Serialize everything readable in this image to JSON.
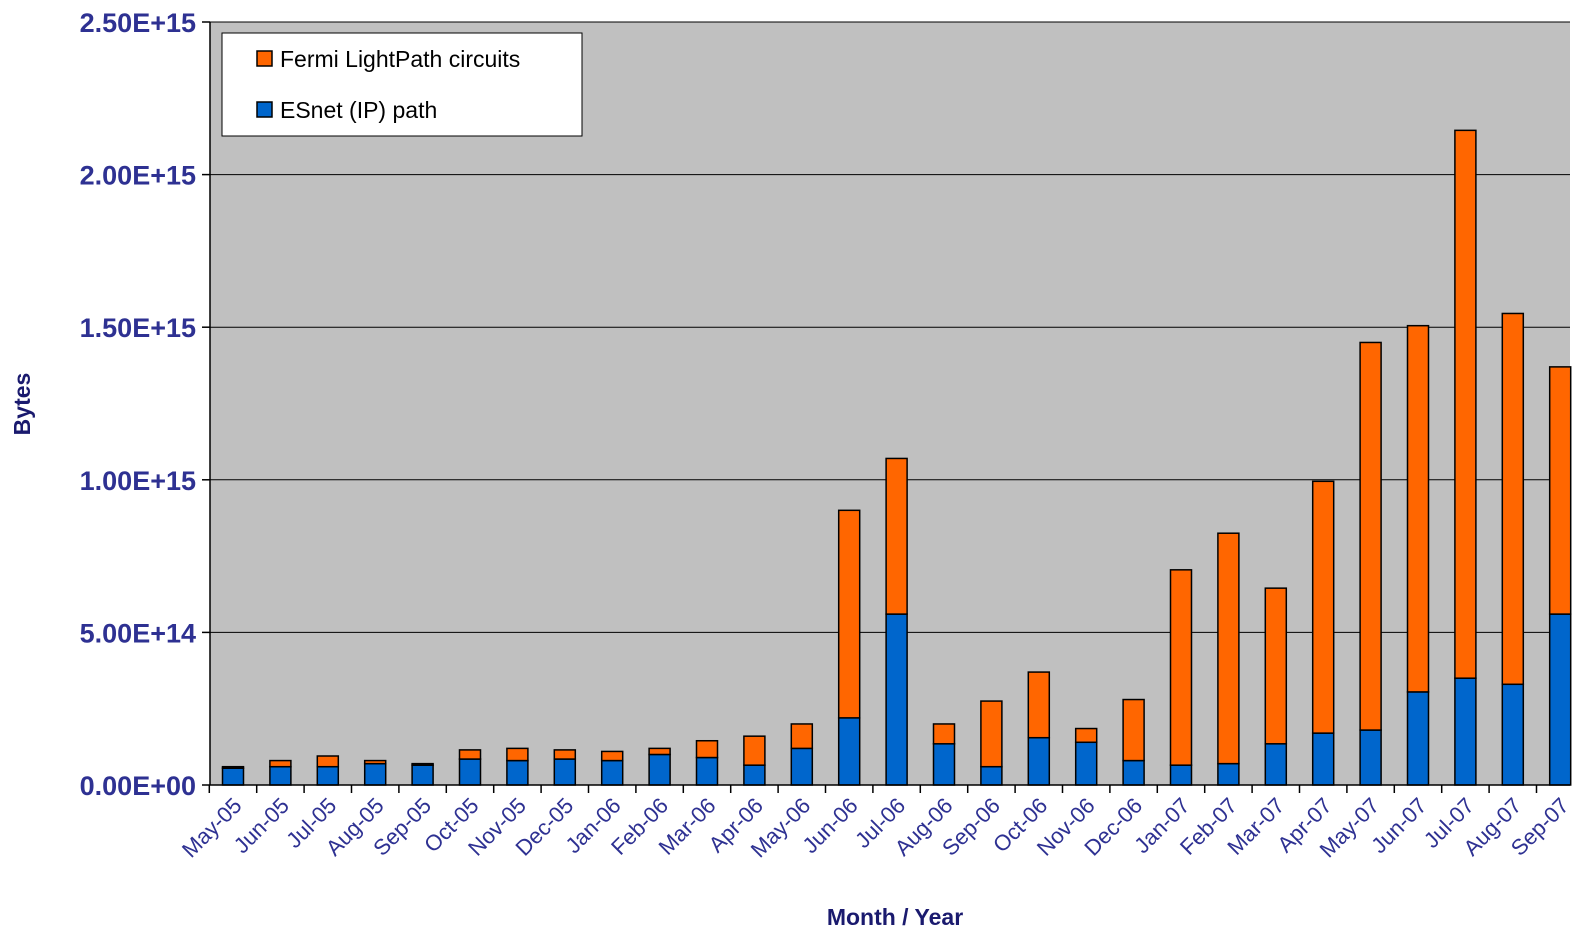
{
  "chart_data": {
    "type": "bar",
    "stacked": true,
    "xlabel": "Month / Year",
    "ylabel": "Bytes",
    "ylim": [
      0,
      2500000000000000.0
    ],
    "yticks": [
      0,
      500000000000000.0,
      1000000000000000.0,
      1500000000000000.0,
      2000000000000000.0,
      2500000000000000.0
    ],
    "ytick_labels": [
      "0.00E+00",
      "5.00E+14",
      "1.00E+15",
      "1.50E+15",
      "2.00E+15",
      "2.50E+15"
    ],
    "grid": "horizontal",
    "legend_position": "top-left",
    "categories": [
      "May-05",
      "Jun-05",
      "Jul-05",
      "Aug-05",
      "Sep-05",
      "Oct-05",
      "Nov-05",
      "Dec-05",
      "Jan-06",
      "Feb-06",
      "Mar-06",
      "Apr-06",
      "May-06",
      "Jun-06",
      "Jul-06",
      "Aug-06",
      "Sep-06",
      "Oct-06",
      "Nov-06",
      "Dec-06",
      "Jan-07",
      "Feb-07",
      "Mar-07",
      "Apr-07",
      "May-07",
      "Jun-07",
      "Jul-07",
      "Aug-07",
      "Sep-07"
    ],
    "series": [
      {
        "name": "ESnet (IP) path",
        "color": "#0066cc",
        "values": [
          55000000000000.0,
          60000000000000.0,
          60000000000000.0,
          70000000000000.0,
          65000000000000.0,
          85000000000000.0,
          80000000000000.0,
          85000000000000.0,
          80000000000000.0,
          100000000000000.0,
          90000000000000.0,
          65000000000000.0,
          120000000000000.0,
          220000000000000.0,
          560000000000000.0,
          135000000000000.0,
          60000000000000.0,
          155000000000000.0,
          140000000000000.0,
          80000000000000.0,
          65000000000000.0,
          70000000000000.0,
          135000000000000.0,
          170000000000000.0,
          180000000000000.0,
          305000000000000.0,
          350000000000000.0,
          330000000000000.0,
          560000000000000.0
        ]
      },
      {
        "name": "Fermi LightPath circuits",
        "color": "#ff6600",
        "values": [
          5000000000000.0,
          20000000000000.0,
          35000000000000.0,
          10000000000000.0,
          5000000000000.0,
          30000000000000.0,
          40000000000000.0,
          30000000000000.0,
          30000000000000.0,
          20000000000000.0,
          55000000000000.0,
          95000000000000.0,
          80000000000000.0,
          680000000000000.0,
          510000000000000.0,
          65000000000000.0,
          215000000000000.0,
          215000000000000.0,
          45000000000000.0,
          200000000000000.0,
          640000000000000.0,
          755000000000000.0,
          510000000000000.0,
          825000000000000.0,
          1270000000000000.0,
          1200000000000000.0,
          1795000000000000.0,
          1215000000000000.0,
          810000000000000.0
        ]
      }
    ]
  },
  "colors": {
    "plot_bg": "#c0c0c0",
    "axis_text": "#2e3192",
    "axis_title": "#1a1a6e"
  }
}
